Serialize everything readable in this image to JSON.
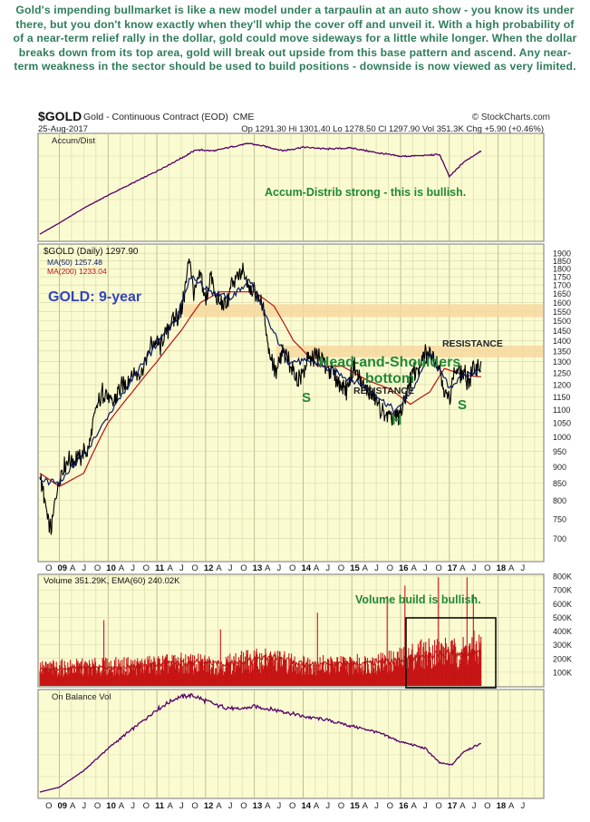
{
  "headline": "Gold's impending bullmarket is like a new model under a tarpaulin at an auto show - you know its under there, but you don't know exactly when they'll whip the cover off and unveil it. With a high probability of of a near-term relief rally in the dollar, gold could move sideways for a little while longer. When the dollar breaks down from its top area, gold will break out upside from this base pattern and ascend. Any near-term weakness in the sector should be used to build positions - downside is now viewed as very limited.",
  "chart_header": {
    "symbol": "$GOLD",
    "name": "Gold - Continuous Contract (EOD)",
    "exchange": "CME",
    "watermark": "© StockCharts.com",
    "date": "25-Aug-2017",
    "quote": "Op 1291.30  Hi 1301.40  Lo 1278.50  Cl 1297.90  Vol 351.3K  Chg +5.90 (+0.46%)"
  },
  "colors": {
    "panel_bg": "#fbfbd2",
    "grid": "#cccc99",
    "price": "#000000",
    "ma50": "#0a1a66",
    "ma200": "#bb1111",
    "accum": "#550066",
    "volume": "#c71515",
    "annotation_green": "#228833",
    "gold_blue": "#3344bb",
    "resistance_band": "#f6d8a0"
  },
  "chart_data": [
    {
      "type": "line",
      "panel": "accumulation-distribution",
      "series": [
        {
          "name": "Accum/Dist",
          "x": [
            2008.6,
            2009.0,
            2009.5,
            2010.0,
            2010.5,
            2011.0,
            2011.5,
            2011.8,
            2012.2,
            2012.5,
            2012.9,
            2013.2,
            2013.6,
            2014.0,
            2014.5,
            2015.0,
            2015.5,
            2016.0,
            2016.5,
            2016.8,
            2017.0,
            2017.3,
            2017.65
          ],
          "values": [
            0.0,
            0.12,
            0.28,
            0.42,
            0.55,
            0.68,
            0.82,
            0.91,
            0.9,
            0.94,
            0.98,
            0.95,
            0.9,
            0.94,
            0.92,
            0.93,
            0.88,
            0.84,
            0.85,
            0.86,
            0.62,
            0.78,
            0.9
          ]
        }
      ],
      "annotations": [
        "Accum-Distrib strong - this is bullish."
      ]
    },
    {
      "type": "line",
      "panel": "price",
      "title": "$GOLD (Daily) 1297.90",
      "scale": "log",
      "ylim": [
        650,
        1950
      ],
      "yticks": [
        700,
        750,
        800,
        850,
        900,
        950,
        1000,
        1050,
        1100,
        1150,
        1200,
        1250,
        1300,
        1350,
        1400,
        1450,
        1500,
        1550,
        1600,
        1650,
        1700,
        1750,
        1800,
        1850,
        1900
      ],
      "series": [
        {
          "name": "$GOLD",
          "x": [
            2008.6,
            2008.75,
            2008.83,
            2009.0,
            2009.2,
            2009.4,
            2009.6,
            2009.75,
            2009.92,
            2010.1,
            2010.3,
            2010.5,
            2010.7,
            2010.92,
            2011.1,
            2011.3,
            2011.5,
            2011.62,
            2011.67,
            2011.75,
            2011.9,
            2012.0,
            2012.1,
            2012.25,
            2012.4,
            2012.55,
            2012.75,
            2012.9,
            2013.05,
            2013.2,
            2013.3,
            2013.45,
            2013.6,
            2013.75,
            2013.9,
            2014.1,
            2014.25,
            2014.5,
            2014.75,
            2014.9,
            2015.05,
            2015.2,
            2015.45,
            2015.6,
            2015.85,
            2015.95,
            2016.1,
            2016.25,
            2016.4,
            2016.5,
            2016.6,
            2016.75,
            2016.95,
            2017.0,
            2017.1,
            2017.25,
            2017.4,
            2017.5,
            2017.65
          ],
          "values": [
            880,
            750,
            720,
            870,
            920,
            930,
            960,
            1100,
            1180,
            1120,
            1200,
            1240,
            1260,
            1400,
            1380,
            1500,
            1550,
            1750,
            1900,
            1650,
            1750,
            1600,
            1750,
            1600,
            1580,
            1700,
            1780,
            1700,
            1650,
            1550,
            1350,
            1250,
            1350,
            1280,
            1220,
            1300,
            1330,
            1280,
            1200,
            1180,
            1280,
            1200,
            1150,
            1090,
            1060,
            1060,
            1150,
            1250,
            1280,
            1330,
            1350,
            1300,
            1140,
            1150,
            1260,
            1250,
            1220,
            1260,
            1297.9
          ]
        },
        {
          "name": "MA(50) 1257.48",
          "x": [
            2008.6,
            2009.0,
            2009.6,
            2010.2,
            2010.9,
            2011.4,
            2011.7,
            2012.0,
            2012.5,
            2012.9,
            2013.3,
            2013.7,
            2014.2,
            2014.8,
            2015.3,
            2015.9,
            2016.3,
            2016.6,
            2017.0,
            2017.3,
            2017.65
          ],
          "values": [
            860,
            850,
            960,
            1130,
            1350,
            1510,
            1760,
            1680,
            1620,
            1730,
            1480,
            1300,
            1300,
            1240,
            1190,
            1090,
            1200,
            1330,
            1190,
            1240,
            1257.48
          ]
        },
        {
          "name": "MA(200) 1233.04",
          "x": [
            2008.6,
            2009.0,
            2009.5,
            2010.0,
            2010.5,
            2011.0,
            2011.5,
            2011.9,
            2012.3,
            2012.7,
            2013.0,
            2013.4,
            2013.8,
            2014.3,
            2014.8,
            2015.3,
            2015.8,
            2016.2,
            2016.6,
            2016.9,
            2017.3,
            2017.65
          ],
          "values": [
            880,
            840,
            880,
            1050,
            1170,
            1300,
            1450,
            1600,
            1660,
            1660,
            1660,
            1580,
            1400,
            1280,
            1280,
            1220,
            1180,
            1120,
            1170,
            1270,
            1240,
            1233.04
          ]
        }
      ],
      "annotations": [
        "GOLD: 9-year",
        "RESISTANCE",
        "Head-and-Shoulders",
        "bottom",
        "RESISTANCE",
        "S",
        "H",
        "S"
      ]
    },
    {
      "type": "bar",
      "panel": "volume",
      "title": "Volume 351.29K, EMA(60) 240.02K",
      "ylim": [
        0,
        800000
      ],
      "yticks": [
        100000,
        200000,
        300000,
        400000,
        500000,
        600000,
        700000,
        800000
      ],
      "ytick_labels": [
        "100K",
        "200K",
        "300K",
        "400K",
        "500K",
        "600K",
        "700K",
        "800K"
      ],
      "series": [
        {
          "name": "Volume",
          "x": [
            2008.6,
            2009.5,
            2010.5,
            2011.5,
            2012.3,
            2012.9,
            2013.3,
            2014.0,
            2015.0,
            2015.9,
            2016.4,
            2016.8,
            2017.1,
            2017.5
          ],
          "values": [
            140000,
            150000,
            160000,
            180000,
            170000,
            200000,
            210000,
            170000,
            170000,
            200000,
            260000,
            280000,
            260000,
            300000
          ]
        },
        {
          "name": "EMA(60) 240.02K",
          "x": [
            2008.6,
            2009.5,
            2010.5,
            2011.5,
            2012.5,
            2013.3,
            2014.0,
            2015.0,
            2016.0,
            2016.5,
            2017.0,
            2017.65
          ],
          "values": [
            120000,
            130000,
            140000,
            170000,
            160000,
            210000,
            160000,
            160000,
            180000,
            230000,
            230000,
            240020
          ]
        }
      ],
      "annotations": [
        "Volume build is bullish."
      ]
    },
    {
      "type": "line",
      "panel": "on-balance-volume",
      "series": [
        {
          "name": "On Balance Vol",
          "x": [
            2008.6,
            2009.0,
            2009.5,
            2010.0,
            2010.5,
            2011.0,
            2011.4,
            2011.7,
            2012.2,
            2012.6,
            2013.0,
            2013.5,
            2014.0,
            2014.5,
            2015.0,
            2015.5,
            2016.0,
            2016.5,
            2016.8,
            2017.05,
            2017.3,
            2017.65
          ],
          "values": [
            0.0,
            0.05,
            0.22,
            0.45,
            0.65,
            0.85,
            0.97,
            1.0,
            0.9,
            0.85,
            0.88,
            0.84,
            0.78,
            0.74,
            0.68,
            0.62,
            0.52,
            0.45,
            0.3,
            0.28,
            0.42,
            0.5
          ]
        }
      ]
    }
  ],
  "x_axis": {
    "years": [
      {
        "y": 2009,
        "label": "09"
      },
      {
        "y": 2010,
        "label": "10"
      },
      {
        "y": 2011,
        "label": "11"
      },
      {
        "y": 2012,
        "label": "12"
      },
      {
        "y": 2013,
        "label": "13"
      },
      {
        "y": 2014,
        "label": "14"
      },
      {
        "y": 2015,
        "label": "15"
      },
      {
        "y": 2016,
        "label": "16"
      },
      {
        "y": 2017,
        "label": "17"
      },
      {
        "y": 2018,
        "label": "18"
      }
    ],
    "quarter_labels": [
      "A",
      "J",
      "O"
    ],
    "first_label": "O",
    "last_labels": [
      "A",
      "J"
    ]
  }
}
